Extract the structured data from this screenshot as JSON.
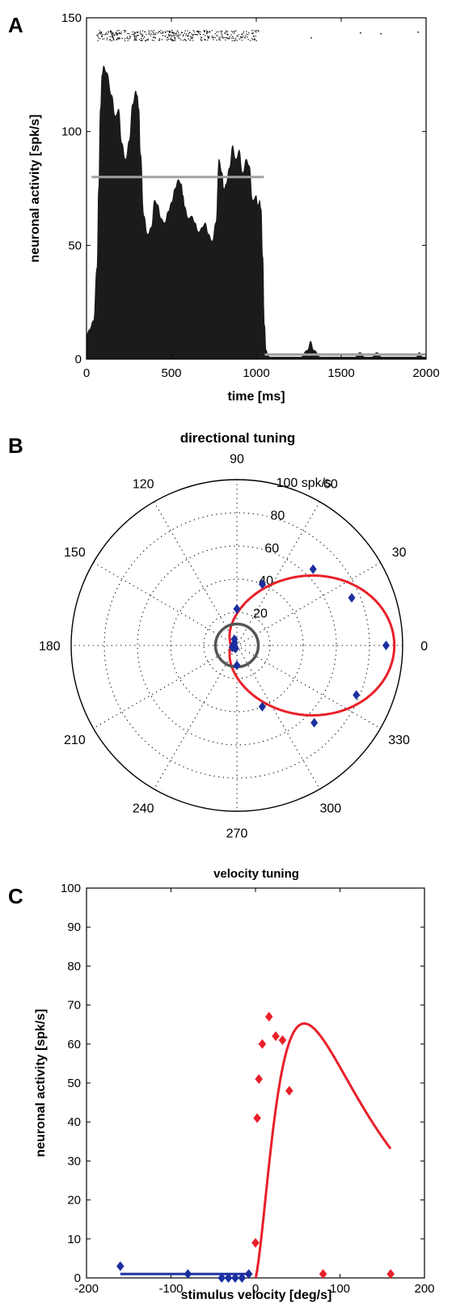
{
  "panels": {
    "a": "A",
    "b": "B",
    "c": "C"
  },
  "chart_data": [
    {
      "type": "area",
      "title": "",
      "xlabel": "time [ms]",
      "ylabel": "neuronal activity [spk/s]",
      "xlim": [
        0,
        2000
      ],
      "ylim": [
        0,
        150
      ],
      "xticks": [
        "0",
        "500",
        "1000",
        "1500",
        "2000"
      ],
      "yticks": [
        "0",
        "50",
        "100",
        "150"
      ],
      "series": [
        {
          "x": [
            0,
            15,
            40,
            60,
            70,
            80,
            90,
            100,
            120,
            150,
            170,
            190,
            210,
            230,
            250,
            270,
            290,
            300,
            310,
            320,
            340,
            360,
            380,
            400,
            420,
            440,
            460,
            480,
            500,
            520,
            540,
            560,
            570,
            580,
            600,
            620,
            640,
            660,
            680,
            700,
            720,
            740,
            760,
            780,
            800,
            810,
            820,
            840,
            860,
            880,
            900,
            920,
            940,
            960,
            980,
            1000,
            1010,
            1020,
            1030,
            1040,
            1050,
            1060,
            1070,
            1080,
            1100,
            1200,
            1260,
            1300,
            1320,
            1340,
            1380,
            1500,
            1580,
            1610,
            1640,
            1680,
            1710,
            1740,
            1770,
            1800,
            1900,
            1940,
            1960,
            1980,
            2000
          ],
          "y": [
            11,
            13,
            17,
            40,
            75,
            110,
            125,
            129,
            126,
            116,
            107,
            110,
            95,
            88,
            96,
            112,
            118,
            116,
            110,
            90,
            63,
            55,
            58,
            70,
            68,
            62,
            60,
            65,
            69,
            75,
            79,
            77,
            72,
            67,
            62,
            63,
            60,
            56,
            58,
            60,
            55,
            52,
            60,
            88,
            82,
            75,
            77,
            84,
            94,
            88,
            92,
            82,
            88,
            85,
            70,
            72,
            68,
            70,
            66,
            45,
            15,
            4,
            2,
            1,
            1,
            1,
            1,
            4,
            8,
            4,
            1,
            1,
            1,
            3,
            1,
            1,
            3,
            1,
            1,
            1,
            1,
            1,
            3,
            1,
            1
          ]
        }
      ],
      "mean_lines": [
        {
          "x": [
            30,
            1045
          ],
          "y": 80
        },
        {
          "x": [
            1050,
            2000
          ],
          "y": 2
        }
      ]
    },
    {
      "type": "scatter",
      "subtype": "polar",
      "title": "directional tuning",
      "angle_labels": [
        "0",
        "30",
        "60",
        "90",
        "120",
        "150",
        "180",
        "210",
        "240",
        "270",
        "300",
        "330"
      ],
      "radial_ticks": [
        20,
        40,
        60,
        80,
        100
      ],
      "radial_labels": [
        "20",
        "40",
        "60",
        "80",
        "100 spk/s"
      ],
      "rlim": [
        0,
        100
      ],
      "points": [
        {
          "angle": 0,
          "r": 90
        },
        {
          "angle": 22.5,
          "r": 75
        },
        {
          "angle": 45,
          "r": 65
        },
        {
          "angle": 67.5,
          "r": 40
        },
        {
          "angle": 90,
          "r": 22
        },
        {
          "angle": 112.5,
          "r": 4
        },
        {
          "angle": 135,
          "r": 2
        },
        {
          "angle": 157.5,
          "r": 2
        },
        {
          "angle": 180,
          "r": 2
        },
        {
          "angle": 202.5,
          "r": 3
        },
        {
          "angle": 225,
          "r": 2
        },
        {
          "angle": 247.5,
          "r": 2
        },
        {
          "angle": 270,
          "r": 12
        },
        {
          "angle": 292.5,
          "r": 40
        },
        {
          "angle": 315,
          "r": 66
        },
        {
          "angle": 337.5,
          "r": 78
        }
      ],
      "fit_curve": {
        "peak_angle": 0,
        "peak": 95,
        "width_kappa": 1.6
      },
      "baseline_circle_r": 10,
      "colors": {
        "points": "#1b2fa0",
        "fit": "#e8202a",
        "baseline": "#555555"
      }
    },
    {
      "type": "scatter",
      "title": "velocity tuning",
      "xlabel": "stimulus velocity [deg/s]",
      "ylabel": "neuronal activity [spk/s]",
      "xlim": [
        -200,
        200
      ],
      "ylim": [
        0,
        100
      ],
      "xticks": [
        "-200",
        "-100",
        "0",
        "100",
        "200"
      ],
      "yticks": [
        "0",
        "10",
        "20",
        "30",
        "40",
        "50",
        "60",
        "70",
        "80",
        "90",
        "100"
      ],
      "series": [
        {
          "x": [
            -160,
            -80,
            -40,
            -32,
            -24,
            -16,
            -8
          ],
          "y": [
            3,
            1,
            0,
            0,
            0,
            0,
            1
          ],
          "color": "#1b2fa0"
        },
        {
          "x": [
            0,
            2,
            4,
            8,
            16,
            24,
            32,
            40,
            80,
            160
          ],
          "y": [
            9,
            41,
            51,
            60,
            67,
            62,
            61,
            48,
            1,
            1
          ],
          "color": "#e8202a"
        }
      ],
      "colors": {
        "negative": "#1b2fa0",
        "positive": "#e8202a"
      }
    }
  ]
}
